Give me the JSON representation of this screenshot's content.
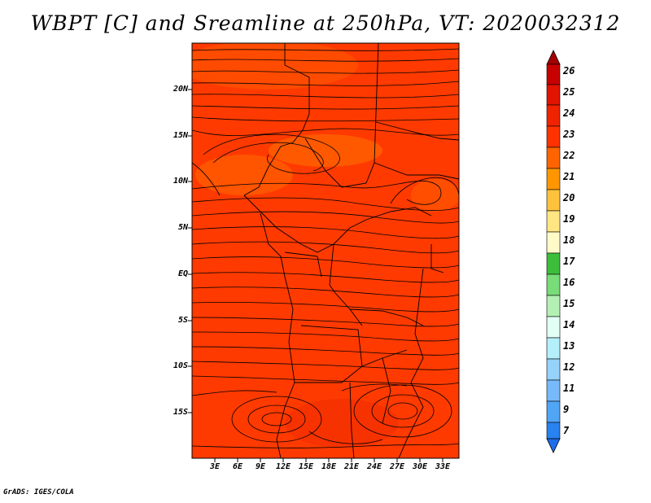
{
  "title": "WBPT [C] and Sreamline at 250hPa, VT: 2020032312",
  "credit": "GrADS: IGES/COLA",
  "map": {
    "variable": "WBPT [C]",
    "level": "250hPa",
    "valid_time": "2020032312",
    "lat_labels": [
      "20N",
      "15N",
      "10N",
      "5N",
      "EQ",
      "5S",
      "10S",
      "15S"
    ],
    "lon_labels": [
      "3E",
      "6E",
      "9E",
      "12E",
      "15E",
      "18E",
      "21E",
      "24E",
      "27E",
      "30E",
      "33E"
    ],
    "fill_color": "#ff3a00"
  },
  "colorbar": {
    "labels": [
      "26",
      "25",
      "24",
      "23",
      "22",
      "21",
      "20",
      "19",
      "18",
      "17",
      "16",
      "15",
      "14",
      "13",
      "12",
      "11",
      "9",
      "7"
    ],
    "colors": [
      "#a50000",
      "#c80000",
      "#e11400",
      "#ff3200",
      "#ff6400",
      "#ff9600",
      "#ffc23c",
      "#ffe682",
      "#fffac8",
      "#3cbe3c",
      "#78dc78",
      "#b4f0b4",
      "#e1fff5",
      "#b4f0fa",
      "#96d2fa",
      "#78b9fa",
      "#50a5f5",
      "#2882f0",
      "#1e6eeb"
    ]
  }
}
